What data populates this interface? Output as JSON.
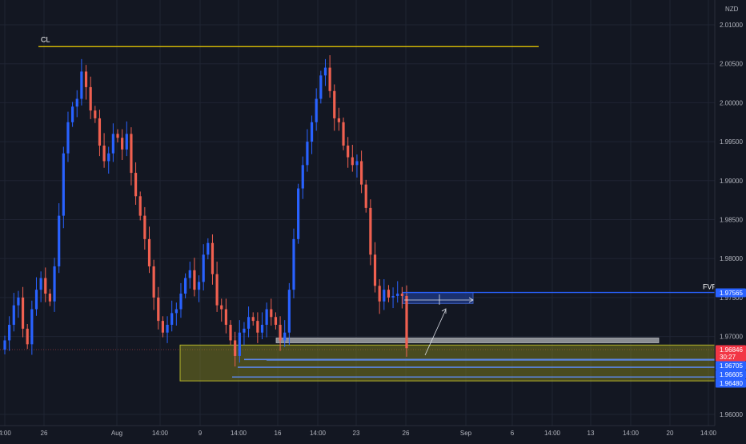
{
  "chart_data": {
    "type": "candlestick",
    "currency": "NZD",
    "ylim": [
      1.9575,
      2.013
    ],
    "y_ticks": [
      {
        "value": 2.01,
        "label": "2.01000"
      },
      {
        "value": 2.005,
        "label": "2.00500"
      },
      {
        "value": 2.0,
        "label": "2.00000"
      },
      {
        "value": 1.995,
        "label": "1.99500"
      },
      {
        "value": 1.99,
        "label": "1.99000"
      },
      {
        "value": 1.985,
        "label": "1.98500"
      },
      {
        "value": 1.98,
        "label": "1.98000"
      },
      {
        "value": 1.975,
        "label": "1.97500"
      },
      {
        "value": 1.97,
        "label": "1.97000"
      },
      {
        "value": 1.96,
        "label": "1.96000"
      }
    ],
    "x_ticks": [
      "4:00",
      "26",
      "Aug",
      "14:00",
      "9",
      "14:00",
      "16",
      "14:00",
      "23",
      "26",
      "Sep",
      "6",
      "14:00",
      "13",
      "14:00",
      "20",
      "14:00"
    ],
    "series": [
      {
        "values": [
          1.9695,
          1.9715,
          1.974,
          1.975,
          1.971,
          1.969,
          1.9735,
          1.976,
          1.9775,
          1.9755,
          1.9745,
          1.979,
          1.9855,
          1.9935,
          1.9975,
          1.9995,
          2.0005,
          2.004,
          2.002,
          1.999,
          1.998,
          1.9945,
          1.9925,
          1.9935,
          1.996,
          1.9955,
          1.994,
          1.996,
          1.991,
          1.988,
          1.9855,
          1.9825,
          1.979,
          1.975,
          1.972,
          1.9705,
          1.9715,
          1.973,
          1.9735,
          1.9755,
          1.9775,
          1.9785,
          1.976,
          1.977,
          1.9805,
          1.982,
          1.978,
          1.974,
          1.9735,
          1.9715,
          1.9695,
          1.9675,
          1.9705,
          1.971,
          1.9725,
          1.972,
          1.9705,
          1.9715,
          1.9735,
          1.9725,
          1.9715,
          1.9695,
          1.9705,
          1.976,
          1.9825,
          1.989,
          1.992,
          1.995,
          1.9975,
          2.0005,
          2.0035,
          2.0045,
          2.0015,
          1.998,
          1.9975,
          1.9945,
          1.993,
          1.992,
          1.9925,
          1.9895,
          1.9865,
          1.9805,
          1.9765,
          1.9745,
          1.976,
          1.975,
          1.9752,
          1.9755,
          1.9752,
          1.9685
        ]
      }
    ],
    "annotations": [
      {
        "type": "hline",
        "label": "CL",
        "y": 2.0072,
        "color": "#f0d000"
      },
      {
        "type": "hline",
        "label": "FVP",
        "y": 1.97565,
        "color": "#2962ff"
      },
      {
        "type": "zone",
        "y_top": 1.9689,
        "y_bottom": 1.9643,
        "color": "#8b8b1e"
      },
      {
        "type": "zone",
        "y_top": 1.9696,
        "y_bottom": 1.9689,
        "color": "#8a8d93"
      },
      {
        "type": "zone",
        "y_top": 1.97565,
        "y_bottom": 1.97465,
        "color": "#1e3a8a"
      },
      {
        "type": "hline",
        "y": 1.96705,
        "color": "#5b86e5"
      },
      {
        "type": "hline",
        "y": 1.96605,
        "color": "#5b86e5"
      },
      {
        "type": "hline",
        "y": 1.9648,
        "color": "#5b86e5"
      }
    ],
    "price_labels": [
      {
        "label": "1.97565",
        "value": 1.97565,
        "color": "#2962ff"
      },
      {
        "label": "1.96846",
        "sub": "30:27",
        "value": 1.96846,
        "color": "#f23645"
      },
      {
        "label": "1.96705",
        "value": 1.96705,
        "color": "#2962ff"
      },
      {
        "label": "1.96605",
        "value": 1.96605,
        "color": "#2962ff"
      },
      {
        "label": "1.96480",
        "value": 1.9648,
        "color": "#2962ff"
      }
    ],
    "colors": {
      "background": "#131722",
      "grid": "#1f2433",
      "up": "#2962ff",
      "down": "#f06050",
      "axis_text": "#b2b5be"
    }
  }
}
